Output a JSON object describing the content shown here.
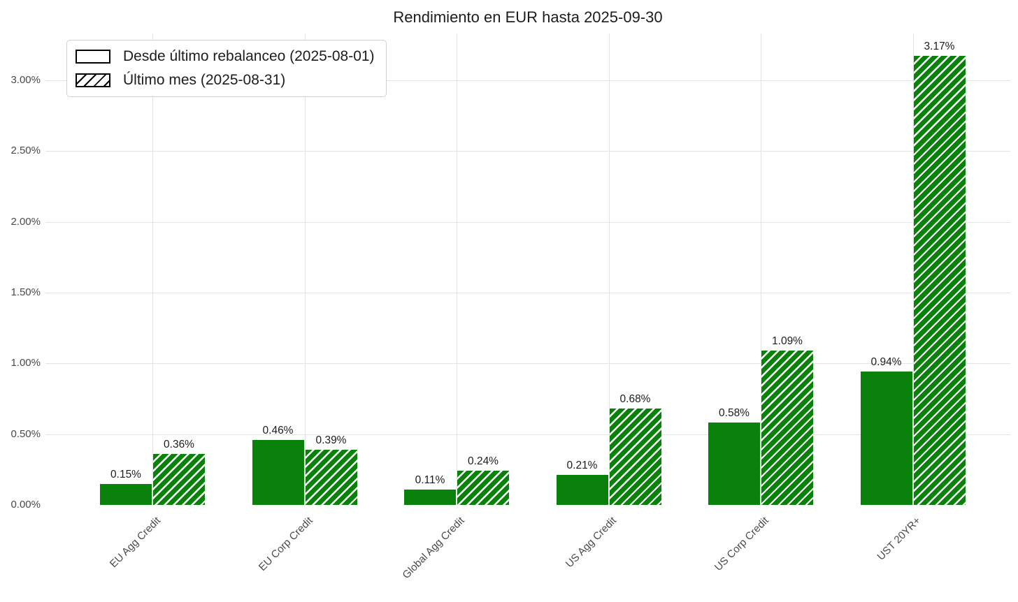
{
  "chart_data": {
    "type": "bar",
    "title": "Rendimiento en EUR hasta 2025-09-30",
    "xlabel": "",
    "ylabel": "",
    "categories": [
      "EU Agg Credit",
      "EU Corp Credit",
      "Global Agg Credit",
      "US Agg Credit",
      "US Corp Credit",
      "UST 20YR+"
    ],
    "series": [
      {
        "name": "Desde último rebalanceo (2025-08-01)",
        "style": "solid",
        "values": [
          0.15,
          0.46,
          0.11,
          0.21,
          0.58,
          0.94
        ],
        "labels": [
          "0.15%",
          "0.46%",
          "0.11%",
          "0.21%",
          "0.58%",
          "0.94%"
        ]
      },
      {
        "name": "Último mes (2025-08-31)",
        "style": "hatched",
        "values": [
          0.36,
          0.39,
          0.24,
          0.68,
          1.09,
          3.17
        ],
        "labels": [
          "0.36%",
          "0.39%",
          "0.24%",
          "0.68%",
          "1.09%",
          "3.17%"
        ]
      }
    ],
    "y_ticks": [
      "0.00%",
      "0.50%",
      "1.00%",
      "1.50%",
      "2.00%",
      "2.50%",
      "3.00%"
    ],
    "ylim": [
      0,
      3.33
    ],
    "grid": true,
    "legend_position": "upper-left",
    "colors": {
      "bar_green": "#0a810a",
      "hatch": "#ffffff",
      "gridline": "#e3e3e3",
      "text": "#1c1c1c",
      "tick_text": "#4a4a4a"
    }
  }
}
